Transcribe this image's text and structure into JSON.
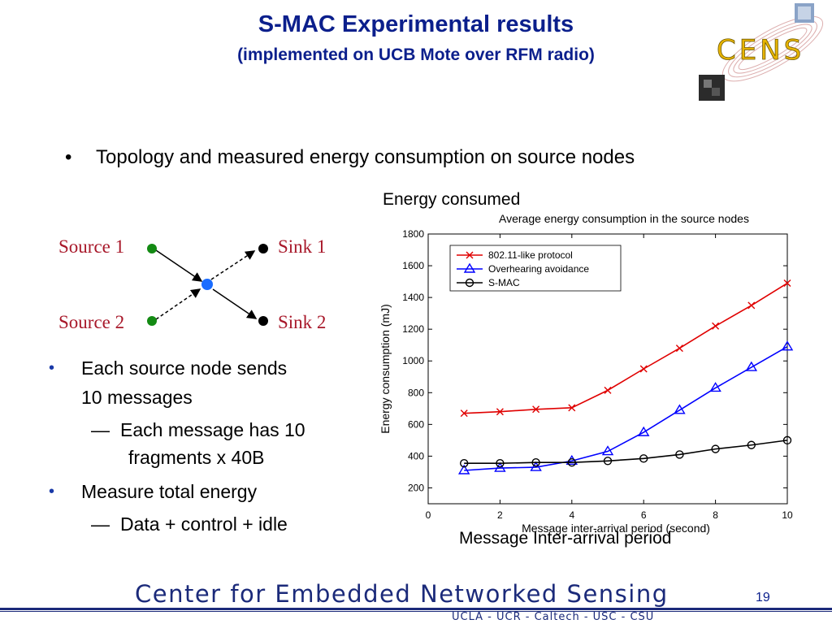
{
  "slide": {
    "title": "S-MAC Experimental results",
    "subtitle": "(implemented on UCB Mote over RFM radio)",
    "main_bullet": "Topology and measured energy consumption on source nodes",
    "bullet_symbol": "•",
    "bullets": [
      {
        "text_line1": "Each source node sends",
        "text_line2": "10 messages"
      },
      {
        "text_line1": "Measure total energy"
      }
    ],
    "sub_bullets": [
      {
        "dash": "—",
        "text_line1": "Each message has 10",
        "text_line2": "fragments x 40B"
      },
      {
        "dash": "—",
        "text_line1": "Data + control + idle"
      }
    ],
    "page_number": "19"
  },
  "logo": {
    "text": "CENS"
  },
  "topology": {
    "source1": "Source 1",
    "source2": "Source 2",
    "sink1": "Sink 1",
    "sink2": "Sink 2",
    "colors": {
      "source": "#138a13",
      "relay": "#1a6cff",
      "sink": "#000000",
      "label": "#a8182a"
    }
  },
  "chart_heading": "Energy consumed",
  "chart_xcaption": "Message Inter-arrival period",
  "chart_data": {
    "type": "line",
    "title": "Average energy consumption in the source nodes",
    "xlabel": "Message inter-arrival period (second)",
    "ylabel": "Energy consumption (mJ)",
    "xlim": [
      0,
      10
    ],
    "ylim": [
      100,
      1800
    ],
    "xticks": [
      0,
      2,
      4,
      6,
      8,
      10
    ],
    "yticks": [
      200,
      400,
      600,
      800,
      1000,
      1200,
      1400,
      1600,
      1800
    ],
    "legend_position": "top-left",
    "x": [
      1,
      2,
      3,
      4,
      5,
      6,
      7,
      8,
      9,
      10
    ],
    "series": [
      {
        "name": "802.11-like protocol",
        "color": "#e00000",
        "marker": "x",
        "values": [
          670,
          680,
          695,
          705,
          815,
          950,
          1080,
          1220,
          1350,
          1490
        ]
      },
      {
        "name": "Overhearing avoidance",
        "color": "#0000ff",
        "marker": "triangle",
        "values": [
          310,
          325,
          330,
          370,
          430,
          550,
          690,
          830,
          960,
          1090
        ]
      },
      {
        "name": "S-MAC",
        "color": "#000000",
        "marker": "circle",
        "values": [
          355,
          355,
          360,
          360,
          370,
          385,
          410,
          445,
          470,
          500
        ]
      }
    ]
  },
  "footer": {
    "title": "Center for Embedded Networked Sensing",
    "subtitle": "UCLA - UCR - Caltech - USC - CSU"
  }
}
